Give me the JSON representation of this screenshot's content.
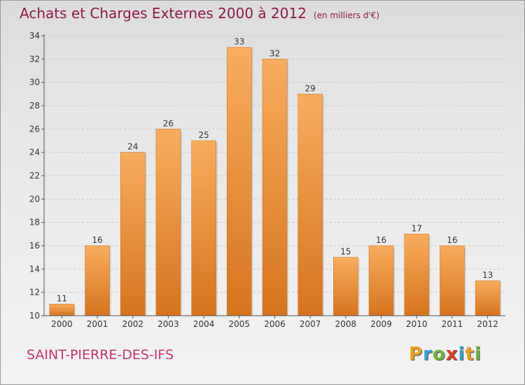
{
  "header": {
    "title": "Achats et Charges Externes 2000 à 2012",
    "unit": "(en milliers d'€)"
  },
  "footer": {
    "place": "SAINT-PIERRE-DES-IFS",
    "logo": "Proxiti"
  },
  "colors": {
    "title": "#8b1a4a",
    "place": "#c43472",
    "bar_top": "#f8ad5e",
    "bar_bottom": "#d6741e",
    "grid": "#c8c8c8"
  },
  "chart_data": {
    "type": "bar",
    "title": "Achats et Charges Externes 2000 à 2012",
    "categories": [
      "2000",
      "2001",
      "2002",
      "2003",
      "2004",
      "2005",
      "2006",
      "2007",
      "2008",
      "2009",
      "2010",
      "2011",
      "2012"
    ],
    "values": [
      11,
      16,
      24,
      26,
      25,
      33,
      32,
      29,
      15,
      16,
      17,
      16,
      13
    ],
    "ylim": [
      10,
      34
    ],
    "yticks": [
      10,
      12,
      14,
      16,
      18,
      20,
      22,
      24,
      26,
      28,
      30,
      32,
      34
    ],
    "grid": true,
    "legend": "none"
  }
}
